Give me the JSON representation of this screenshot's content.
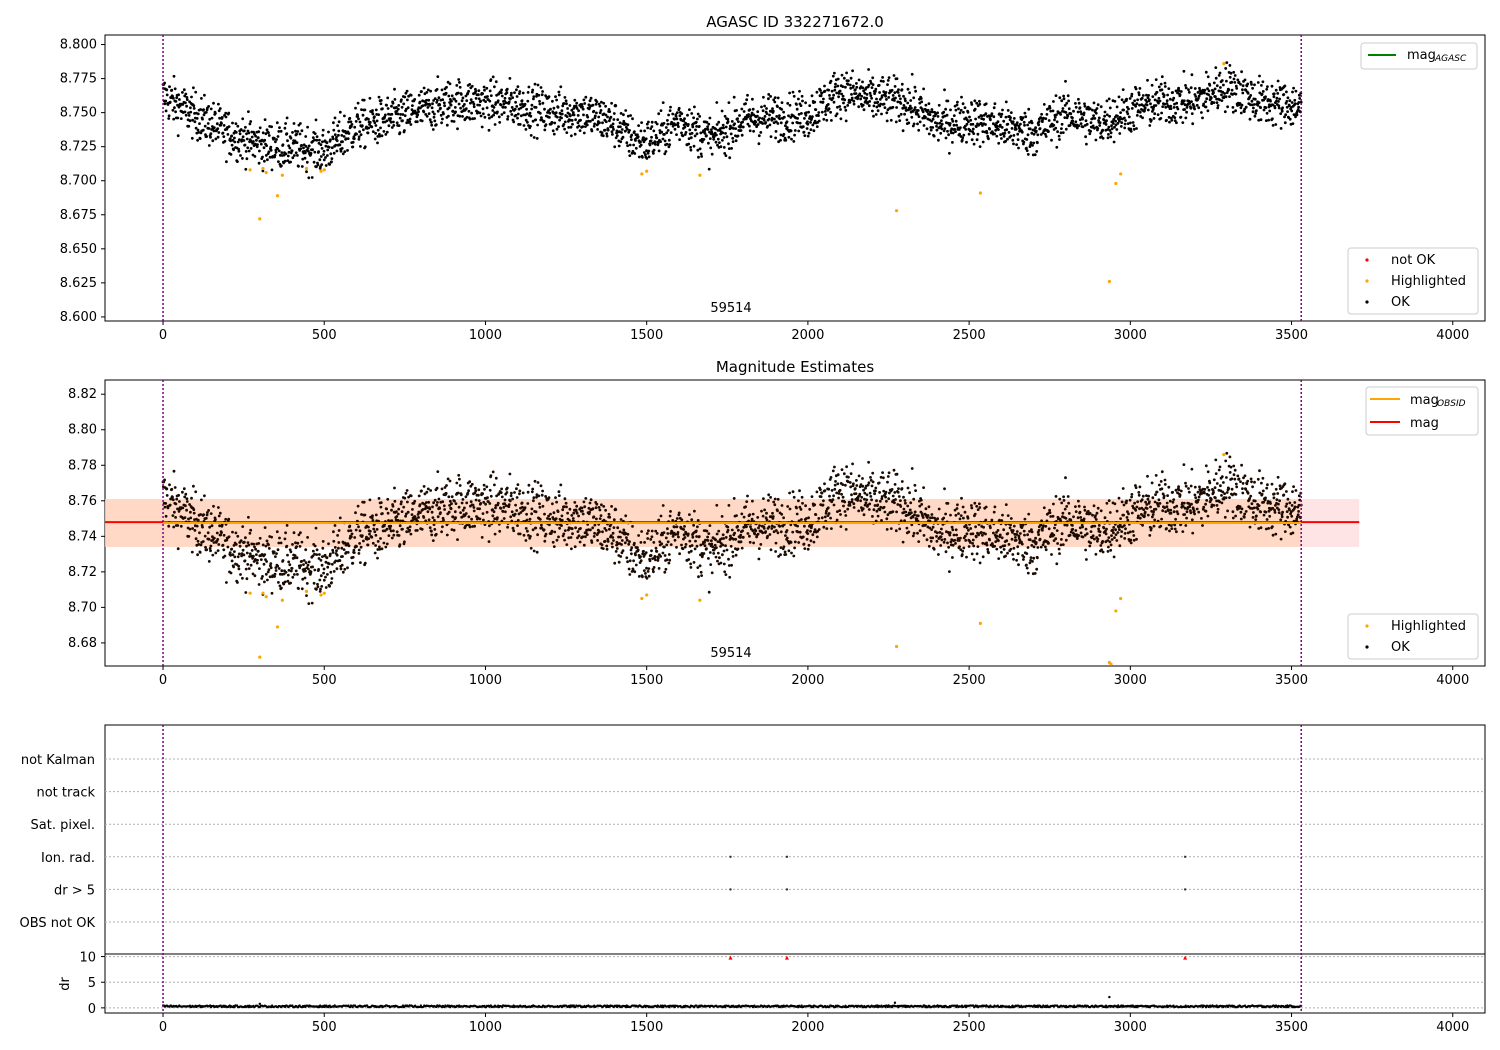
{
  "chart_data": [
    {
      "type": "scatter",
      "title": "AGASC ID 332271672.0",
      "xlim": [
        -180,
        4100
      ],
      "ylim": [
        8.597,
        8.807
      ],
      "xticks": [
        0,
        500,
        1000,
        1500,
        2000,
        2500,
        3000,
        3500,
        4000
      ],
      "yticks": [
        "8.600",
        "8.625",
        "8.650",
        "8.675",
        "8.700",
        "8.725",
        "8.750",
        "8.775",
        "8.800"
      ],
      "vlines": [
        0,
        3530
      ],
      "annotation": {
        "text": "59514",
        "x": 1765,
        "y": 8.604
      },
      "legend_upper": [
        {
          "label": "mag",
          "sub": "AGASC",
          "color": "#008000"
        }
      ],
      "legend_lower": [
        {
          "label": "not OK",
          "color": "#ff0000"
        },
        {
          "label": "Highlighted",
          "color": "#ffa500"
        },
        {
          "label": "OK",
          "color": "#000000"
        }
      ],
      "series": [
        {
          "name": "OK",
          "color": "#000000",
          "trend": {
            "x": [
              0,
              100,
              200,
              300,
              400,
              500,
              600,
              700,
              800,
              900,
              1000,
              1100,
              1200,
              1300,
              1400,
              1450,
              1500,
              1550,
              1600,
              1700,
              1800,
              1900,
              2000,
              2100,
              2200,
              2300,
              2400,
              2500,
              2600,
              2700,
              2800,
              2900,
              3000,
              3100,
              3200,
              3300,
              3400,
              3530
            ],
            "y": [
              8.762,
              8.748,
              8.735,
              8.727,
              8.725,
              8.722,
              8.74,
              8.745,
              8.752,
              8.758,
              8.757,
              8.756,
              8.75,
              8.75,
              8.742,
              8.732,
              8.728,
              8.735,
              8.745,
              8.73,
              8.745,
              8.747,
              8.748,
              8.766,
              8.76,
              8.758,
              8.742,
              8.745,
              8.74,
              8.735,
              8.75,
              8.742,
              8.752,
              8.758,
              8.758,
              8.77,
              8.758,
              8.755
            ]
          },
          "scatter": 0.008
        },
        {
          "name": "Highlighted",
          "color": "#ffa500",
          "x": [
            270,
            300,
            310,
            320,
            355,
            370,
            445,
            490,
            500,
            1485,
            1500,
            1665,
            2275,
            2535,
            2935,
            2955,
            2970,
            3290
          ],
          "y": [
            8.708,
            8.672,
            8.709,
            8.706,
            8.689,
            8.704,
            8.709,
            8.707,
            8.708,
            8.705,
            8.707,
            8.704,
            8.678,
            8.691,
            8.626,
            8.698,
            8.705,
            8.786
          ]
        }
      ]
    },
    {
      "type": "scatter",
      "title": "Magnitude Estimates",
      "xlim": [
        -180,
        4100
      ],
      "ylim": [
        8.667,
        8.828
      ],
      "xticks": [
        0,
        500,
        1000,
        1500,
        2000,
        2500,
        3000,
        3500,
        4000
      ],
      "yticks": [
        "8.68",
        "8.70",
        "8.72",
        "8.74",
        "8.76",
        "8.78",
        "8.80",
        "8.82"
      ],
      "vlines": [
        0,
        3530
      ],
      "annotation": {
        "text": "59514",
        "x": 1765,
        "y": 8.671
      },
      "band": {
        "x": [
          -180,
          3710
        ],
        "y": [
          8.734,
          8.761
        ],
        "color": "#ffcdd2"
      },
      "band_inner": {
        "x": [
          -180,
          3530
        ],
        "y": [
          8.734,
          8.761
        ],
        "color": "#ffd0b0"
      },
      "line_mag": {
        "y": 8.748,
        "x": [
          -180,
          3710
        ],
        "color": "#ff0000"
      },
      "line_mag_obsid": {
        "y": 8.7475,
        "x": [
          0,
          3530
        ],
        "color": "#ffa500"
      },
      "legend_upper": [
        {
          "label": "mag",
          "sub": "OBSID",
          "color": "#ffa500"
        },
        {
          "label": "mag",
          "sub": "",
          "color": "#ff0000"
        }
      ],
      "legend_lower": [
        {
          "label": "Highlighted",
          "color": "#ffa500"
        },
        {
          "label": "OK",
          "color": "#000000"
        }
      ],
      "series": [
        {
          "name": "OK",
          "color": "#000000",
          "trend_ref": 0,
          "scatter": 0.008
        },
        {
          "name": "Highlighted",
          "color": "#ffa500",
          "x": [
            270,
            300,
            310,
            320,
            355,
            370,
            445,
            490,
            500,
            1485,
            1500,
            1665,
            2275,
            2535,
            2935,
            2940,
            2955,
            2970,
            3290
          ],
          "y": [
            8.708,
            8.672,
            8.708,
            8.706,
            8.689,
            8.704,
            8.709,
            8.707,
            8.708,
            8.705,
            8.707,
            8.704,
            8.678,
            8.691,
            8.669,
            8.668,
            8.698,
            8.705,
            8.786
          ]
        }
      ]
    },
    {
      "type": "scatter",
      "title": "",
      "xlim": [
        -180,
        4100
      ],
      "xticks": [
        0,
        500,
        1000,
        1500,
        2000,
        2500,
        3000,
        3500,
        4000
      ],
      "vlines": [
        0,
        3530
      ],
      "flag_categories": [
        "not Kalman",
        "not track",
        "Sat. pixel.",
        "Ion. rad.",
        "dr > 5",
        "OBS not OK"
      ],
      "flag_points": [
        {
          "category": "Ion. rad.",
          "x": [
            1760,
            1935,
            3170
          ]
        },
        {
          "category": "dr > 5",
          "x": [
            1760,
            1935,
            3170
          ]
        }
      ],
      "dr": {
        "ylabel": "dr",
        "ylim": [
          -1,
          10.5
        ],
        "yticks": [
          0,
          5,
          10
        ],
        "red_x": [
          1760,
          1935,
          3170
        ],
        "red_y": 9.8,
        "baseline": 0.3,
        "outliers": {
          "x": [
            300,
            2270,
            2935
          ],
          "y": [
            0.8,
            1.0,
            2.1
          ]
        }
      }
    }
  ]
}
